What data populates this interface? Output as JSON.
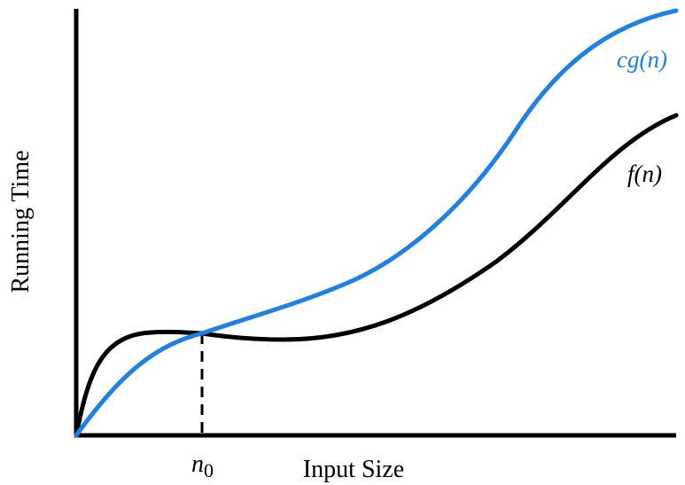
{
  "diagram": {
    "y_axis_label": "Running Time",
    "x_axis_label": "Input Size",
    "threshold_label_base": "n",
    "threshold_label_subscript": "0",
    "curves": [
      {
        "id": "cg",
        "label": "cg(n)",
        "color": "#1e7fe6"
      },
      {
        "id": "f",
        "label": "f(n)",
        "color": "#000000"
      }
    ],
    "axis_color": "#000000",
    "threshold_line_style": "dashed"
  }
}
